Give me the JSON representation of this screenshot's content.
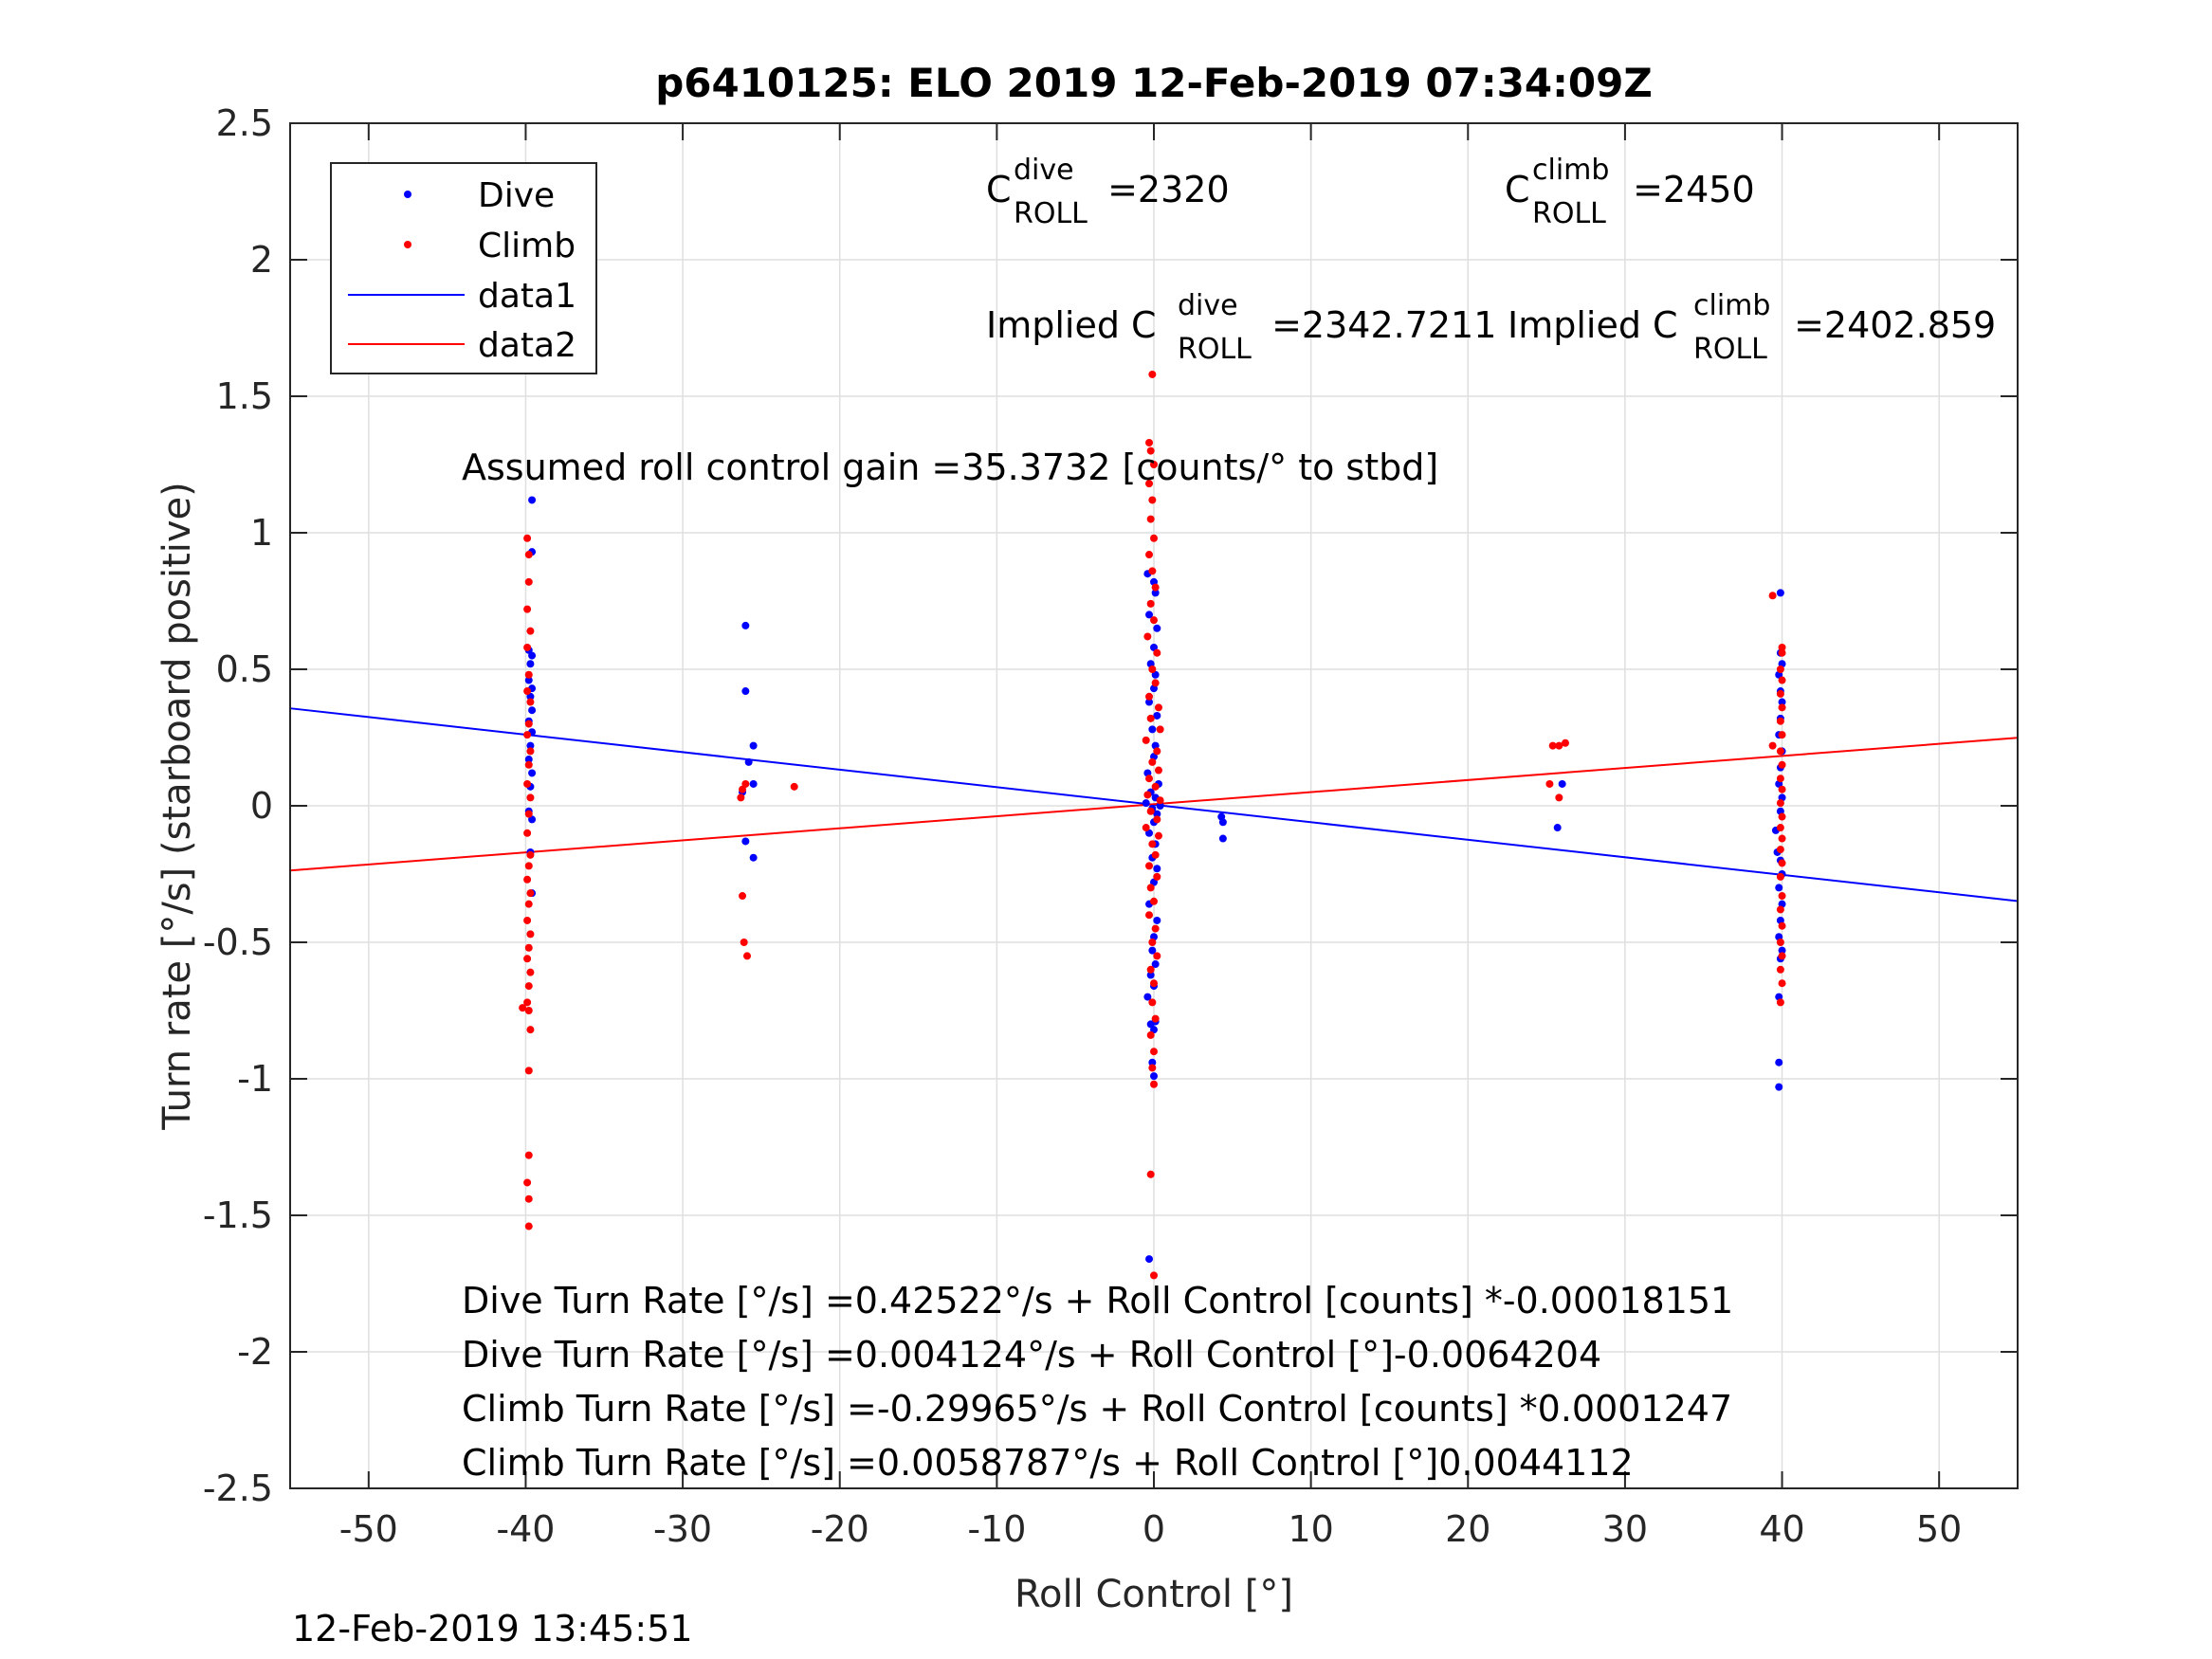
{
  "chart_data": {
    "type": "scatter",
    "title": "p6410125: ELO 2019 12-Feb-2019 07:34:09Z",
    "xlabel": "Roll Control [°]",
    "ylabel": "Turn rate [°/s] (starboard positive)",
    "xlim": [
      -55,
      55
    ],
    "ylim": [
      -2.5,
      2.5
    ],
    "grid": true,
    "legend_position": "top-left",
    "x_ticks": [
      "-50",
      "-40",
      "-30",
      "-20",
      "-10",
      "0",
      "10",
      "20",
      "30",
      "40",
      "50"
    ],
    "y_ticks": [
      "2.5",
      "2",
      "1.5",
      "1",
      "0.5",
      "0",
      "-0.5",
      "-1",
      "-1.5",
      "-2",
      "-2.5"
    ],
    "series": [
      {
        "name": "Dive",
        "kind": "points",
        "color": "#0000ff",
        "points": [
          [
            -39.6,
            1.12
          ],
          [
            -39.6,
            0.93
          ],
          [
            -39.8,
            0.57
          ],
          [
            -39.6,
            0.55
          ],
          [
            -39.7,
            0.52
          ],
          [
            -39.8,
            0.46
          ],
          [
            -39.6,
            0.43
          ],
          [
            -39.7,
            0.4
          ],
          [
            -39.6,
            0.35
          ],
          [
            -39.8,
            0.31
          ],
          [
            -39.6,
            0.27
          ],
          [
            -39.7,
            0.22
          ],
          [
            -39.8,
            0.17
          ],
          [
            -39.6,
            0.12
          ],
          [
            -39.7,
            0.07
          ],
          [
            -39.8,
            -0.02
          ],
          [
            -39.6,
            -0.05
          ],
          [
            -39.7,
            -0.17
          ],
          [
            -39.6,
            -0.32
          ],
          [
            -26.0,
            0.66
          ],
          [
            -26.0,
            0.42
          ],
          [
            -25.5,
            0.22
          ],
          [
            -25.8,
            0.16
          ],
          [
            -25.5,
            0.08
          ],
          [
            -26.2,
            0.05
          ],
          [
            -26.0,
            -0.13
          ],
          [
            -25.5,
            -0.19
          ],
          [
            -0.4,
            0.85
          ],
          [
            0.0,
            0.82
          ],
          [
            0.1,
            0.78
          ],
          [
            -0.3,
            0.7
          ],
          [
            0.2,
            0.65
          ],
          [
            0.0,
            0.58
          ],
          [
            -0.2,
            0.52
          ],
          [
            0.1,
            0.48
          ],
          [
            0.0,
            0.43
          ],
          [
            -0.3,
            0.38
          ],
          [
            0.2,
            0.33
          ],
          [
            -0.1,
            0.28
          ],
          [
            0.1,
            0.22
          ],
          [
            0.0,
            0.18
          ],
          [
            -0.4,
            0.12
          ],
          [
            0.3,
            0.08
          ],
          [
            -0.2,
            0.05
          ],
          [
            0.1,
            0.03
          ],
          [
            -0.5,
            0.01
          ],
          [
            0.4,
            0.0
          ],
          [
            -0.1,
            -0.01
          ],
          [
            0.2,
            -0.03
          ],
          [
            0.0,
            -0.06
          ],
          [
            -0.3,
            -0.1
          ],
          [
            0.1,
            -0.14
          ],
          [
            -0.1,
            -0.19
          ],
          [
            0.2,
            -0.23
          ],
          [
            0.0,
            -0.28
          ],
          [
            -0.3,
            -0.36
          ],
          [
            0.2,
            -0.42
          ],
          [
            0.0,
            -0.48
          ],
          [
            -0.1,
            -0.53
          ],
          [
            0.1,
            -0.58
          ],
          [
            -0.2,
            -0.62
          ],
          [
            0.0,
            -0.66
          ],
          [
            -0.4,
            -0.7
          ],
          [
            0.1,
            -0.79
          ],
          [
            -0.2,
            -0.8
          ],
          [
            0.0,
            -0.82
          ],
          [
            -0.1,
            -0.94
          ],
          [
            0.0,
            -0.99
          ],
          [
            -0.3,
            -1.66
          ],
          [
            4.3,
            -0.04
          ],
          [
            4.4,
            -0.06
          ],
          [
            4.4,
            -0.12
          ],
          [
            26.0,
            0.08
          ],
          [
            25.7,
            -0.08
          ],
          [
            39.9,
            0.78
          ],
          [
            39.9,
            0.56
          ],
          [
            40.0,
            0.52
          ],
          [
            39.8,
            0.48
          ],
          [
            39.9,
            0.42
          ],
          [
            40.0,
            0.38
          ],
          [
            39.9,
            0.32
          ],
          [
            39.8,
            0.26
          ],
          [
            40.0,
            0.2
          ],
          [
            39.9,
            0.14
          ],
          [
            39.8,
            0.08
          ],
          [
            40.0,
            0.03
          ],
          [
            39.9,
            -0.02
          ],
          [
            39.6,
            -0.09
          ],
          [
            39.7,
            -0.17
          ],
          [
            39.9,
            -0.2
          ],
          [
            40.0,
            -0.25
          ],
          [
            39.8,
            -0.3
          ],
          [
            40.0,
            -0.36
          ],
          [
            39.9,
            -0.42
          ],
          [
            39.8,
            -0.48
          ],
          [
            40.0,
            -0.53
          ],
          [
            39.9,
            -0.56
          ],
          [
            39.8,
            -0.7
          ],
          [
            39.8,
            -0.94
          ],
          [
            39.8,
            -1.03
          ]
        ]
      },
      {
        "name": "Climb",
        "kind": "points",
        "color": "#ff0000",
        "points": [
          [
            -39.9,
            0.98
          ],
          [
            -39.8,
            0.92
          ],
          [
            -39.8,
            0.82
          ],
          [
            -39.9,
            0.72
          ],
          [
            -39.7,
            0.64
          ],
          [
            -39.9,
            0.58
          ],
          [
            -39.8,
            0.48
          ],
          [
            -39.9,
            0.42
          ],
          [
            -39.7,
            0.38
          ],
          [
            -39.8,
            0.3
          ],
          [
            -39.9,
            0.26
          ],
          [
            -39.7,
            0.2
          ],
          [
            -39.8,
            0.15
          ],
          [
            -39.9,
            0.08
          ],
          [
            -39.7,
            0.03
          ],
          [
            -39.8,
            -0.03
          ],
          [
            -39.9,
            -0.1
          ],
          [
            -39.7,
            -0.18
          ],
          [
            -39.8,
            -0.22
          ],
          [
            -39.9,
            -0.27
          ],
          [
            -39.7,
            -0.32
          ],
          [
            -39.8,
            -0.36
          ],
          [
            -39.9,
            -0.42
          ],
          [
            -39.7,
            -0.47
          ],
          [
            -39.8,
            -0.52
          ],
          [
            -39.9,
            -0.56
          ],
          [
            -39.7,
            -0.61
          ],
          [
            -39.8,
            -0.66
          ],
          [
            -39.9,
            -0.72
          ],
          [
            -40.2,
            -0.74
          ],
          [
            -39.8,
            -0.75
          ],
          [
            -39.7,
            -0.82
          ],
          [
            -39.8,
            -0.97
          ],
          [
            -39.8,
            -1.28
          ],
          [
            -39.9,
            -1.38
          ],
          [
            -39.8,
            -1.44
          ],
          [
            -39.8,
            -1.54
          ],
          [
            -26.0,
            0.08
          ],
          [
            -26.2,
            0.06
          ],
          [
            -26.3,
            0.03
          ],
          [
            -22.9,
            0.07
          ],
          [
            -26.2,
            -0.33
          ],
          [
            -26.1,
            -0.5
          ],
          [
            -25.9,
            -0.55
          ],
          [
            -0.1,
            1.58
          ],
          [
            -0.3,
            1.33
          ],
          [
            -0.2,
            1.3
          ],
          [
            0.0,
            1.25
          ],
          [
            -0.3,
            1.18
          ],
          [
            -0.1,
            1.12
          ],
          [
            -0.2,
            1.05
          ],
          [
            0.0,
            0.98
          ],
          [
            -0.3,
            0.92
          ],
          [
            -0.1,
            0.86
          ],
          [
            0.1,
            0.8
          ],
          [
            -0.2,
            0.74
          ],
          [
            0.0,
            0.68
          ],
          [
            -0.4,
            0.62
          ],
          [
            0.2,
            0.56
          ],
          [
            -0.1,
            0.5
          ],
          [
            0.1,
            0.45
          ],
          [
            -0.3,
            0.4
          ],
          [
            0.3,
            0.36
          ],
          [
            -0.2,
            0.32
          ],
          [
            0.4,
            0.28
          ],
          [
            -0.5,
            0.24
          ],
          [
            0.2,
            0.2
          ],
          [
            -0.1,
            0.16
          ],
          [
            0.3,
            0.13
          ],
          [
            -0.3,
            0.1
          ],
          [
            0.1,
            0.07
          ],
          [
            -0.4,
            0.04
          ],
          [
            0.4,
            0.02
          ],
          [
            -0.2,
            -0.02
          ],
          [
            0.2,
            -0.05
          ],
          [
            -0.5,
            -0.08
          ],
          [
            0.3,
            -0.11
          ],
          [
            -0.1,
            -0.14
          ],
          [
            0.1,
            -0.18
          ],
          [
            -0.3,
            -0.22
          ],
          [
            0.2,
            -0.26
          ],
          [
            -0.2,
            -0.3
          ],
          [
            0.0,
            -0.35
          ],
          [
            -0.3,
            -0.4
          ],
          [
            0.1,
            -0.45
          ],
          [
            -0.1,
            -0.5
          ],
          [
            0.2,
            -0.55
          ],
          [
            -0.2,
            -0.6
          ],
          [
            0.0,
            -0.65
          ],
          [
            -0.1,
            -0.72
          ],
          [
            0.1,
            -0.78
          ],
          [
            -0.2,
            -0.84
          ],
          [
            0.0,
            -0.9
          ],
          [
            -0.1,
            -0.96
          ],
          [
            0.0,
            -1.02
          ],
          [
            -0.2,
            -1.35
          ],
          [
            0.0,
            -1.72
          ],
          [
            25.2,
            0.08
          ],
          [
            25.4,
            0.22
          ],
          [
            25.8,
            0.22
          ],
          [
            26.2,
            0.23
          ],
          [
            25.8,
            0.03
          ],
          [
            39.4,
            0.77
          ],
          [
            40.0,
            0.58
          ],
          [
            40.0,
            0.56
          ],
          [
            39.9,
            0.5
          ],
          [
            40.0,
            0.46
          ],
          [
            39.9,
            0.41
          ],
          [
            40.0,
            0.36
          ],
          [
            39.9,
            0.31
          ],
          [
            40.0,
            0.26
          ],
          [
            39.4,
            0.22
          ],
          [
            39.9,
            0.2
          ],
          [
            40.0,
            0.15
          ],
          [
            39.9,
            0.1
          ],
          [
            40.0,
            0.06
          ],
          [
            39.9,
            0.01
          ],
          [
            40.0,
            -0.04
          ],
          [
            39.9,
            -0.08
          ],
          [
            40.0,
            -0.12
          ],
          [
            39.9,
            -0.16
          ],
          [
            40.0,
            -0.21
          ],
          [
            39.9,
            -0.26
          ],
          [
            40.0,
            -0.33
          ],
          [
            39.9,
            -0.38
          ],
          [
            40.0,
            -0.44
          ],
          [
            39.9,
            -0.5
          ],
          [
            40.0,
            -0.55
          ],
          [
            39.9,
            -0.6
          ],
          [
            40.0,
            -0.65
          ],
          [
            39.9,
            -0.72
          ]
        ]
      },
      {
        "name": "data1",
        "kind": "line",
        "color": "#0000ff",
        "x": [
          -55,
          55
        ],
        "y": [
          0.357,
          -0.349
        ]
      },
      {
        "name": "data2",
        "kind": "line",
        "color": "#ff0000",
        "x": [
          -55,
          55
        ],
        "y": [
          -0.237,
          0.249
        ]
      }
    ],
    "annotations": {
      "c_dive": {
        "prefix": "C",
        "sup": "dive",
        "sub": "ROLL",
        "value": " =2320"
      },
      "c_climb": {
        "prefix": "C",
        "sup": "climb",
        "sub": "ROLL",
        "value": " =2450"
      },
      "implied_dive": {
        "prefix": "Implied C",
        "sup": "dive",
        "sub": "ROLL",
        "value": " =2342.7211"
      },
      "implied_climb": {
        "prefix": "Implied C",
        "sup": "climb",
        "sub": "ROLL",
        "value": " =2402.859"
      },
      "gain": "Assumed roll control gain =35.3732 [counts/° to stbd]",
      "equations": [
        "Dive Turn Rate [°/s] =0.42522°/s + Roll Control [counts] *-0.00018151",
        "Dive Turn Rate [°/s] =0.004124°/s + Roll Control [°]-0.0064204",
        "Climb Turn Rate [°/s] =-0.29965°/s + Roll Control [counts] *0.0001247",
        "Climb Turn Rate [°/s] =0.0058787°/s + Roll Control [°]0.0044112"
      ]
    },
    "timestamp": "12-Feb-2019 13:45:51"
  }
}
